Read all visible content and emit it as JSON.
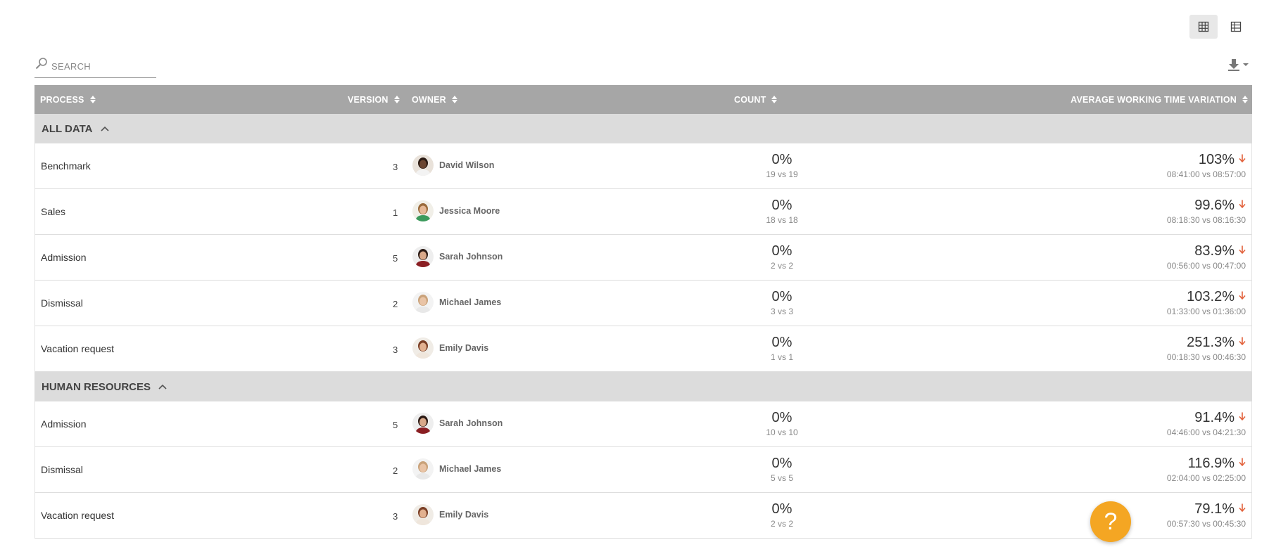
{
  "search": {
    "placeholder": "SEARCH",
    "value": ""
  },
  "headers": {
    "process": "PROCESS",
    "version": "VERSION",
    "owner": "OWNER",
    "count": "COUNT",
    "avg": "AVERAGE WORKING TIME VARIATION"
  },
  "colors": {
    "header_bg": "#a6a6a6",
    "group_bg": "#dcdcdc",
    "arrow": "#e2603a",
    "help": "#f4a623"
  },
  "groups": [
    {
      "label": "ALL DATA",
      "rows": [
        {
          "process": "Benchmark",
          "version": "3",
          "owner": "David Wilson",
          "count_pct": "0%",
          "count_vs": "19 vs 19",
          "avg_pct": "103%",
          "avg_vs": "08:41:00 vs 08:57:00",
          "avatar": "man-dark"
        },
        {
          "process": "Sales",
          "version": "1",
          "owner": "Jessica Moore",
          "count_pct": "0%",
          "count_vs": "18 vs 18",
          "avg_pct": "99.6%",
          "avg_vs": "08:18:30 vs 08:16:30",
          "avatar": "woman-green"
        },
        {
          "process": "Admission",
          "version": "5",
          "owner": "Sarah Johnson",
          "count_pct": "0%",
          "count_vs": "2 vs 2",
          "avg_pct": "83.9%",
          "avg_vs": "00:56:00 vs 00:47:00",
          "avatar": "woman-dark"
        },
        {
          "process": "Dismissal",
          "version": "2",
          "owner": "Michael James",
          "count_pct": "0%",
          "count_vs": "3 vs 3",
          "avg_pct": "103.2%",
          "avg_vs": "01:33:00 vs 01:36:00",
          "avatar": "man-light"
        },
        {
          "process": "Vacation request",
          "version": "3",
          "owner": "Emily Davis",
          "count_pct": "0%",
          "count_vs": "1 vs 1",
          "avg_pct": "251.3%",
          "avg_vs": "00:18:30 vs 00:46:30",
          "avatar": "woman-brown"
        }
      ]
    },
    {
      "label": "HUMAN RESOURCES",
      "rows": [
        {
          "process": "Admission",
          "version": "5",
          "owner": "Sarah Johnson",
          "count_pct": "0%",
          "count_vs": "10 vs 10",
          "avg_pct": "91.4%",
          "avg_vs": "04:46:00 vs 04:21:30",
          "avatar": "woman-dark"
        },
        {
          "process": "Dismissal",
          "version": "2",
          "owner": "Michael James",
          "count_pct": "0%",
          "count_vs": "5 vs 5",
          "avg_pct": "116.9%",
          "avg_vs": "02:04:00 vs 02:25:00",
          "avatar": "man-light"
        },
        {
          "process": "Vacation request",
          "version": "3",
          "owner": "Emily Davis",
          "count_pct": "0%",
          "count_vs": "2 vs 2",
          "avg_pct": "79.1%",
          "avg_vs": "00:57:30 vs 00:45:30",
          "avatar": "woman-brown"
        }
      ]
    }
  ],
  "help": {
    "label": "?"
  },
  "icons": {
    "grid_view": "grid-view-icon",
    "table_view": "table-view-icon",
    "search": "search-icon",
    "download": "download-icon",
    "sort": "sort-icon",
    "collapse": "chevron-up-icon",
    "trend": "arrow-down-icon"
  }
}
